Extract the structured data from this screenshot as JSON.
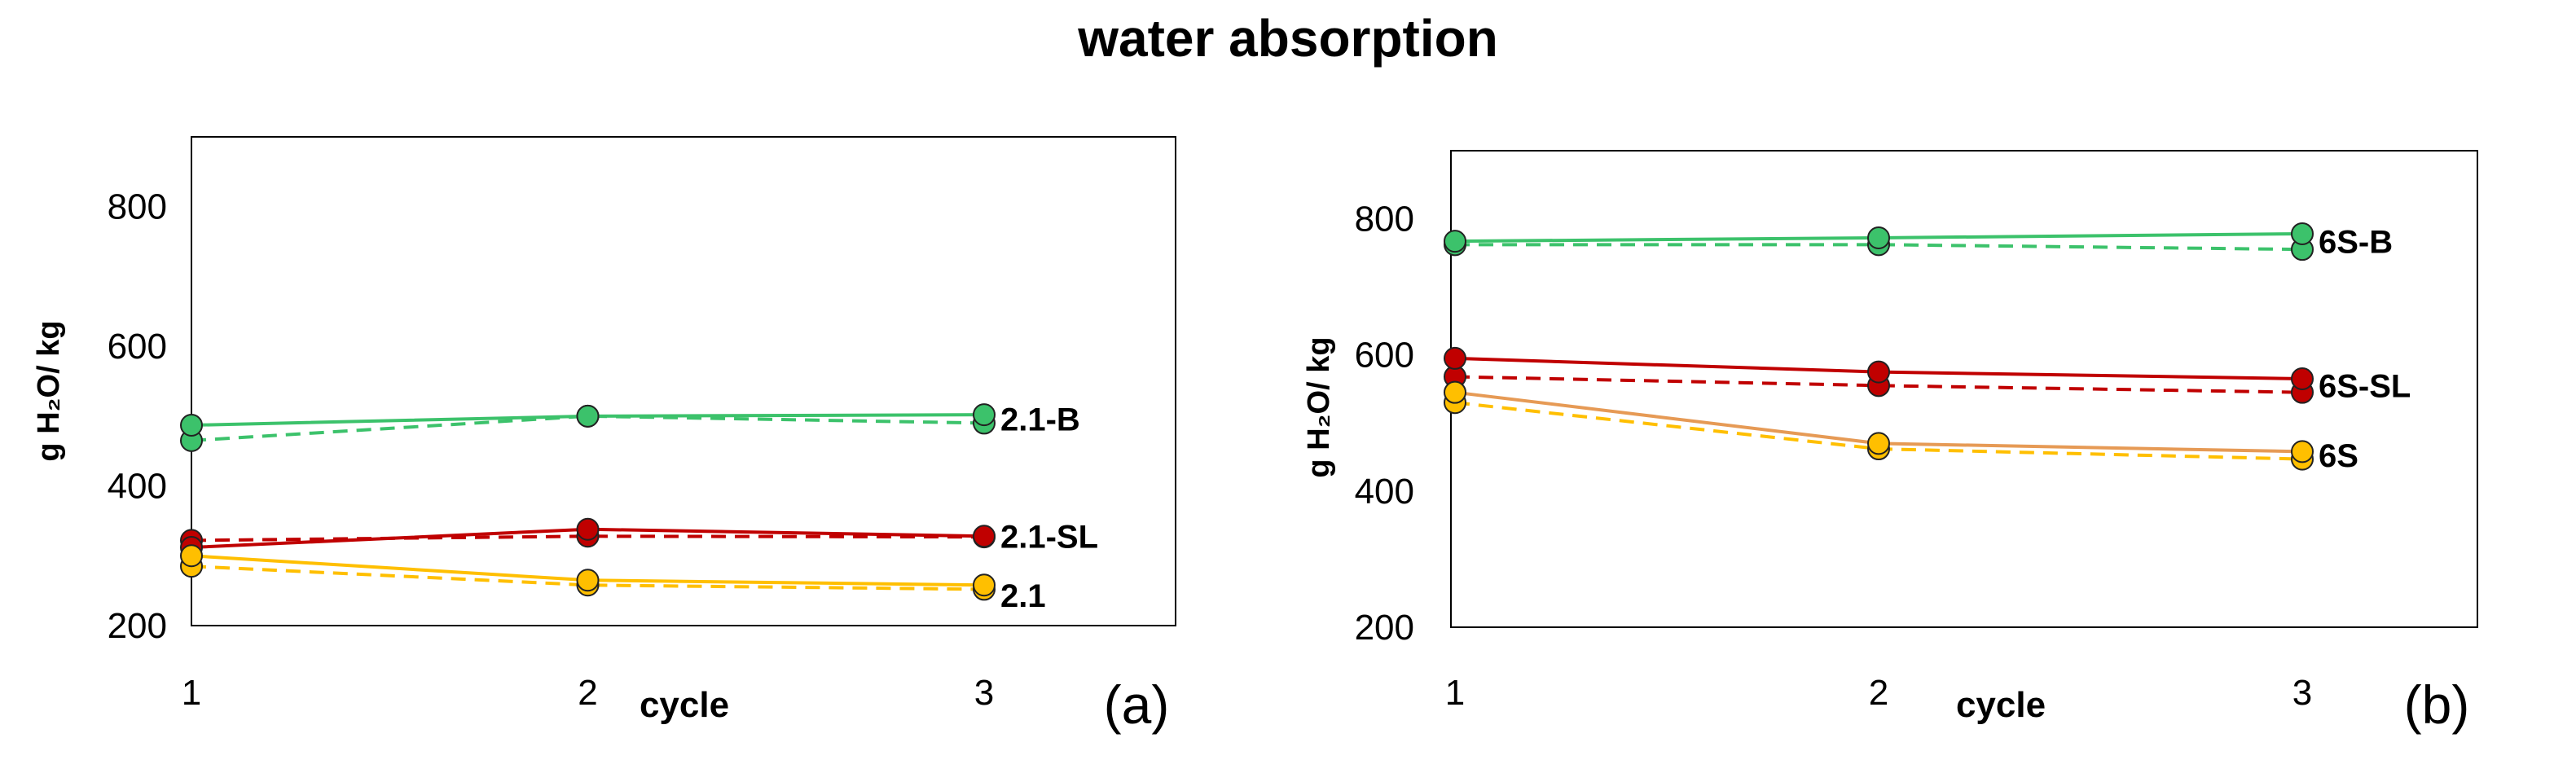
{
  "page": {
    "title": "water absorption"
  },
  "colors": {
    "green": "#3cc26b",
    "red": "#c00000",
    "orange": "#ffbf00",
    "tan": "#e69a55",
    "axis": "#000000"
  },
  "chart_data": [
    {
      "id": "a",
      "type": "line",
      "panel_label": "(a)",
      "xlabel": "cycle",
      "ylabel": "g H₂O/ kg",
      "x": [
        1,
        2,
        3
      ],
      "ylim": [
        200,
        900
      ],
      "yticks": [
        200,
        400,
        600,
        800
      ],
      "series": [
        {
          "name": "2.1-B",
          "label": "2.1-B",
          "color": "#3cc26b",
          "solid": [
            487,
            500,
            502
          ],
          "dashed": [
            465,
            500,
            490
          ]
        },
        {
          "name": "2.1-SL",
          "label": "2.1-SL",
          "color": "#c00000",
          "solid": [
            312,
            338,
            328
          ],
          "dashed": [
            322,
            328,
            327
          ]
        },
        {
          "name": "2.1",
          "label": "2.1",
          "color": "#ffbf00",
          "solid": [
            300,
            265,
            258
          ],
          "dashed": [
            285,
            258,
            252
          ]
        }
      ]
    },
    {
      "id": "b",
      "type": "line",
      "panel_label": "(b)",
      "xlabel": "cycle",
      "ylabel": "g H₂O/ kg",
      "x": [
        1,
        2,
        3
      ],
      "ylim": [
        200,
        900
      ],
      "yticks": [
        200,
        400,
        600,
        800
      ],
      "series": [
        {
          "name": "6S-B",
          "label": "6S-B",
          "color": "#3cc26b",
          "solid": [
            767,
            772,
            778
          ],
          "dashed": [
            762,
            762,
            755
          ]
        },
        {
          "name": "6S-SL",
          "label": "6S-SL",
          "color": "#c00000",
          "solid": [
            595,
            575,
            565
          ],
          "dashed": [
            568,
            555,
            545
          ]
        },
        {
          "name": "6S",
          "label": "6S",
          "color": "#ffbf00",
          "solid": [
            545,
            470,
            458
          ],
          "dashed": [
            530,
            462,
            447
          ],
          "solid_color": "#e69a55"
        }
      ]
    }
  ]
}
